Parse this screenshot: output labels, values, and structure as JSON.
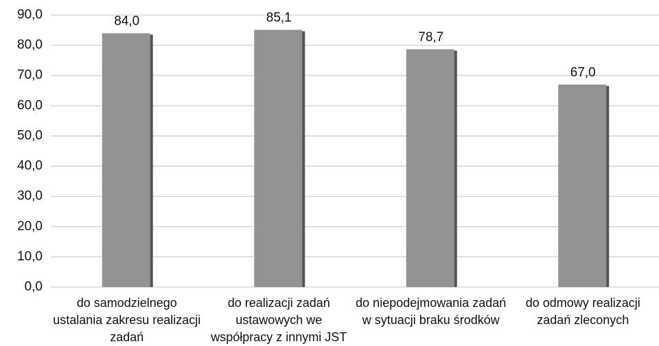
{
  "chart_data": {
    "type": "bar",
    "categories": [
      "do samodzielnego ustalania zakresu realizacji zadań",
      "do realizacji zadań ustawowych we współpracy z innymi JST",
      "do niepodejmowania zadań w sytuacji braku środków",
      "do odmowy realizacji zadań zleconych"
    ],
    "values": [
      84.0,
      85.1,
      78.7,
      67.0
    ],
    "value_labels": [
      "84,0",
      "85,1",
      "78,7",
      "67,0"
    ],
    "color": "#939393",
    "ylim": [
      0,
      90
    ],
    "yticks": [
      {
        "value": 0,
        "label": "0,0"
      },
      {
        "value": 10,
        "label": "10,0"
      },
      {
        "value": 20,
        "label": "20,0"
      },
      {
        "value": 30,
        "label": "30,0"
      },
      {
        "value": 40,
        "label": "40,0"
      },
      {
        "value": 50,
        "label": "50,0"
      },
      {
        "value": 60,
        "label": "60,0"
      },
      {
        "value": 70,
        "label": "70,0"
      },
      {
        "value": 80,
        "label": "80,0"
      },
      {
        "value": 90,
        "label": "90,0"
      }
    ],
    "grid": true
  }
}
